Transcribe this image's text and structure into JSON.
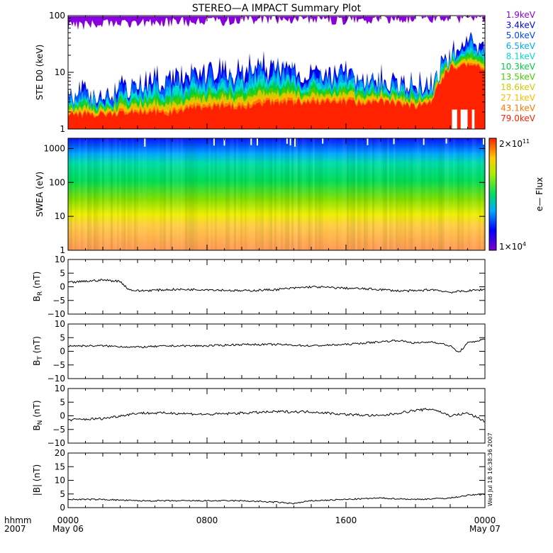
{
  "title": "STEREO—A IMPACT Summary Plot",
  "stamp": "Wed Jul 18 16:38:36 2007",
  "time_axis": {
    "row1_label": "hhmm",
    "row2_label": "2007",
    "ticks": [
      {
        "hour": 0,
        "label": "0000",
        "date": "May 06"
      },
      {
        "hour": 8,
        "label": "0800",
        "date": ""
      },
      {
        "hour": 16,
        "label": "1600",
        "date": ""
      },
      {
        "hour": 24,
        "label": "0000",
        "date": "May 07"
      }
    ],
    "range_hours": [
      0,
      24
    ]
  },
  "colorbar": {
    "top_label": "2×10",
    "top_exp": "11",
    "bottom_label": "1×10",
    "bottom_exp": "4",
    "title": "e— Flux"
  },
  "panels": {
    "ste": {
      "ylabel": "STE D0 (keV)",
      "ticks": [
        "1",
        "10",
        "100"
      ],
      "legend": [
        {
          "label": "1.9keV",
          "color": "#8800dd"
        },
        {
          "label": "3.4keV",
          "color": "#0000ee"
        },
        {
          "label": "5.0keV",
          "color": "#0044ff"
        },
        {
          "label": "6.5keV",
          "color": "#00aaee"
        },
        {
          "label": "8.1keV",
          "color": "#00ddcc"
        },
        {
          "label": "10.3keV",
          "color": "#00cc44"
        },
        {
          "label": "13.5keV",
          "color": "#44cc00"
        },
        {
          "label": "18.6keV",
          "color": "#cccc00"
        },
        {
          "label": "27.1keV",
          "color": "#ffbb00"
        },
        {
          "label": "43.1keV",
          "color": "#ff7700"
        },
        {
          "label": "79.0keV",
          "color": "#ff2200"
        }
      ]
    },
    "swea": {
      "ylabel": "SWEA (eV)",
      "ticks": [
        "1",
        "10",
        "100",
        "1000"
      ]
    },
    "br": {
      "ylabel": "B",
      "sub": "R",
      "unit": " (nT)",
      "ticks": [
        "10",
        "5",
        "0",
        "−5",
        "−10"
      ]
    },
    "bt": {
      "ylabel": "B",
      "sub": "T",
      "unit": " (nT)",
      "ticks": [
        "10",
        "5",
        "0",
        "−5",
        "−10"
      ]
    },
    "bn": {
      "ylabel": "B",
      "sub": "N",
      "unit": " (nT)",
      "ticks": [
        "10",
        "5",
        "0",
        "−5",
        "−10"
      ]
    },
    "bmag": {
      "ylabel": "|B| (nT)",
      "ticks": [
        "20",
        "15",
        "10",
        "5",
        "0"
      ]
    }
  },
  "chart_data": [
    {
      "type": "area",
      "title": "STEREO—A IMPACT Summary Plot",
      "ylabel": "STE D0 (keV)",
      "yscale": "log",
      "ylim": [
        1,
        100
      ],
      "x_unit": "hours since 0000 May 06 2007",
      "x": [
        0,
        2,
        4,
        6,
        8,
        10,
        12,
        14,
        16,
        18,
        20,
        21,
        22,
        23,
        24
      ],
      "series": [
        {
          "name": "1.9keV",
          "values": [
            70,
            75,
            78,
            82,
            85,
            88,
            90,
            90,
            90,
            92,
            95,
            95,
            95,
            95,
            95
          ]
        },
        {
          "name": "3.4keV",
          "values": [
            4,
            4,
            6,
            8,
            9,
            10,
            13,
            10,
            9,
            8,
            6,
            6,
            20,
            30,
            25
          ]
        },
        {
          "name": "79.0keV",
          "values": [
            1.8,
            1.8,
            2,
            2,
            2.5,
            2.5,
            3,
            3,
            3,
            3,
            2.5,
            3,
            12,
            14,
            12
          ]
        }
      ]
    },
    {
      "type": "heatmap",
      "ylabel": "SWEA (eV)",
      "yscale": "log",
      "ylim": [
        1,
        2000
      ],
      "zlabel": "e— Flux",
      "zlim": [
        10000.0,
        200000000000.0
      ]
    },
    {
      "type": "line",
      "ylabel": "B_R (nT)",
      "ylim": [
        -10,
        10
      ],
      "x": [
        0,
        1,
        2,
        3,
        3.5,
        4,
        6,
        8,
        10,
        12,
        14,
        16,
        18,
        19,
        20,
        21,
        22,
        23,
        24
      ],
      "values": [
        1.5,
        2,
        2.5,
        2,
        -1,
        -1.5,
        -1,
        -1,
        -1.5,
        -1,
        0,
        -0.5,
        -1,
        -1.5,
        -1.5,
        -1,
        -2,
        -1.5,
        -1
      ]
    },
    {
      "type": "line",
      "ylabel": "B_T (nT)",
      "ylim": [
        -10,
        10
      ],
      "x": [
        0,
        2,
        4,
        6,
        8,
        10,
        12,
        14,
        16,
        18,
        19,
        20,
        21,
        22,
        22.5,
        23,
        24
      ],
      "values": [
        2,
        2,
        1.5,
        2,
        2,
        2.5,
        2.5,
        2,
        2.5,
        3.5,
        4,
        3,
        3.5,
        2,
        -0.5,
        3,
        4.5
      ]
    },
    {
      "type": "line",
      "ylabel": "B_N (nT)",
      "ylim": [
        -10,
        10
      ],
      "x": [
        0,
        2,
        3,
        4,
        6,
        8,
        10,
        12,
        14,
        16,
        18,
        19,
        20,
        21,
        22,
        23,
        24
      ],
      "values": [
        -1.5,
        -1,
        0,
        1,
        1,
        0.5,
        1,
        1.5,
        1.5,
        0.5,
        0,
        1,
        2,
        2.5,
        0,
        1,
        -2
      ]
    },
    {
      "type": "line",
      "ylabel": "|B| (nT)",
      "ylim": [
        0,
        20
      ],
      "x": [
        0,
        2,
        4,
        6,
        8,
        10,
        12,
        13,
        14,
        16,
        18,
        20,
        22,
        23,
        24
      ],
      "values": [
        3,
        3,
        2.5,
        2.5,
        2.5,
        2.5,
        2,
        1.5,
        2.5,
        3,
        3.5,
        3,
        3.5,
        4.5,
        5
      ]
    }
  ]
}
